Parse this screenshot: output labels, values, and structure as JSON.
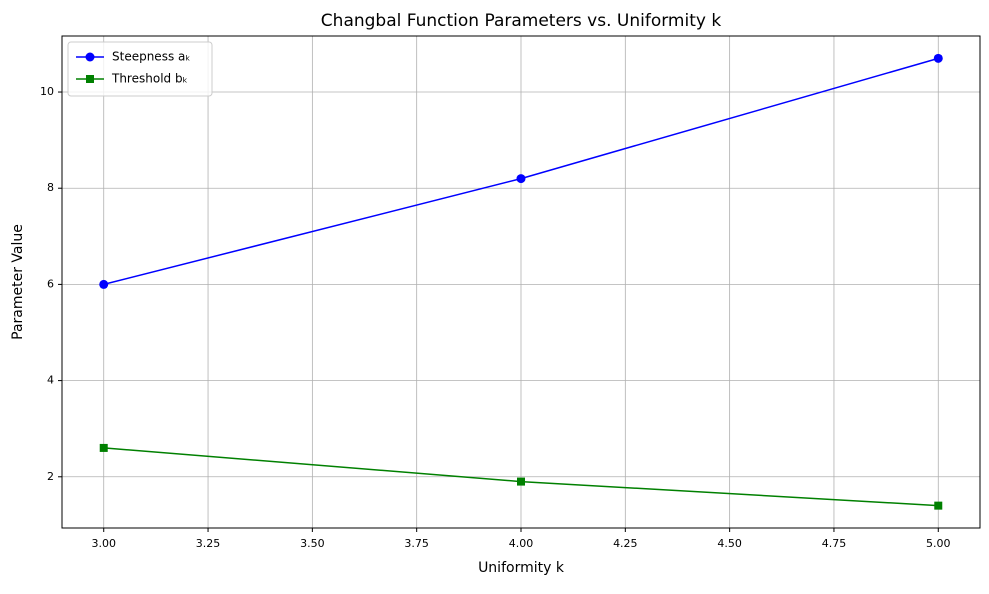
{
  "chart_data": {
    "type": "line",
    "title": "Changbal Function Parameters vs. Uniformity k",
    "xlabel": "Uniformity k",
    "ylabel": "Parameter Value",
    "x": [
      3,
      4,
      5
    ],
    "series": [
      {
        "name": "Steepness aₖ",
        "color": "#0000ff",
        "marker": "circle",
        "values": [
          6.0,
          8.2,
          10.7
        ]
      },
      {
        "name": "Threshold bₖ",
        "color": "#008000",
        "marker": "square",
        "values": [
          2.6,
          1.9,
          1.4
        ]
      }
    ],
    "xlim": [
      2.9,
      5.1
    ],
    "xticks": [
      {
        "value": 3,
        "label": "3.00"
      },
      {
        "value": 3.25,
        "label": "3.25"
      },
      {
        "value": 3.5,
        "label": "3.50"
      },
      {
        "value": 3.75,
        "label": "3.75"
      },
      {
        "value": 4,
        "label": "4.00"
      },
      {
        "value": 4.25,
        "label": "4.25"
      },
      {
        "value": 4.5,
        "label": "4.50"
      },
      {
        "value": 4.75,
        "label": "4.75"
      },
      {
        "value": 5,
        "label": "5.00"
      }
    ],
    "ylim": [
      0.935,
      11.165
    ],
    "yticks": [
      2,
      4,
      6,
      8,
      10
    ],
    "grid": true,
    "legend": "upper left"
  }
}
